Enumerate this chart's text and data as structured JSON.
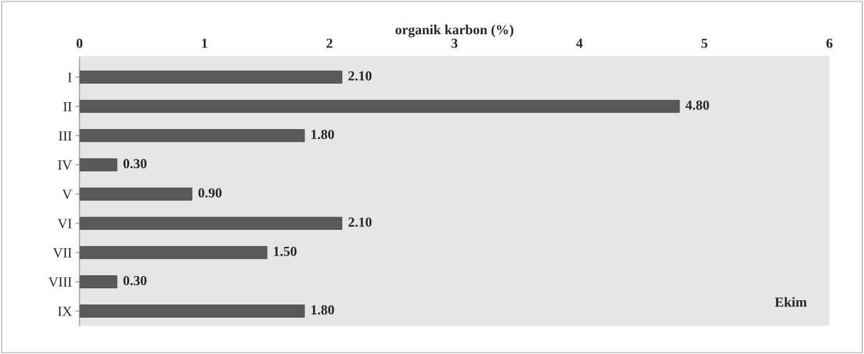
{
  "chart_data": {
    "type": "bar",
    "orientation": "horizontal",
    "xlabel": "organik karbon (%)",
    "categories": [
      "I",
      "II",
      "III",
      "IV",
      "V",
      "VI",
      "VII",
      "VIII",
      "IX"
    ],
    "values": [
      2.1,
      4.8,
      1.8,
      0.3,
      0.9,
      2.1,
      1.5,
      0.3,
      1.8
    ],
    "value_labels": [
      "2.10",
      "4.80",
      "1.80",
      "0.30",
      "0.90",
      "2.10",
      "1.50",
      "0.30",
      "1.80"
    ],
    "color": "#595959",
    "xlim": [
      0,
      6
    ],
    "xticks": [
      0,
      1,
      2,
      3,
      4,
      5,
      6
    ],
    "grid": false,
    "legend": false,
    "annotations": [
      "Ekim"
    ]
  }
}
